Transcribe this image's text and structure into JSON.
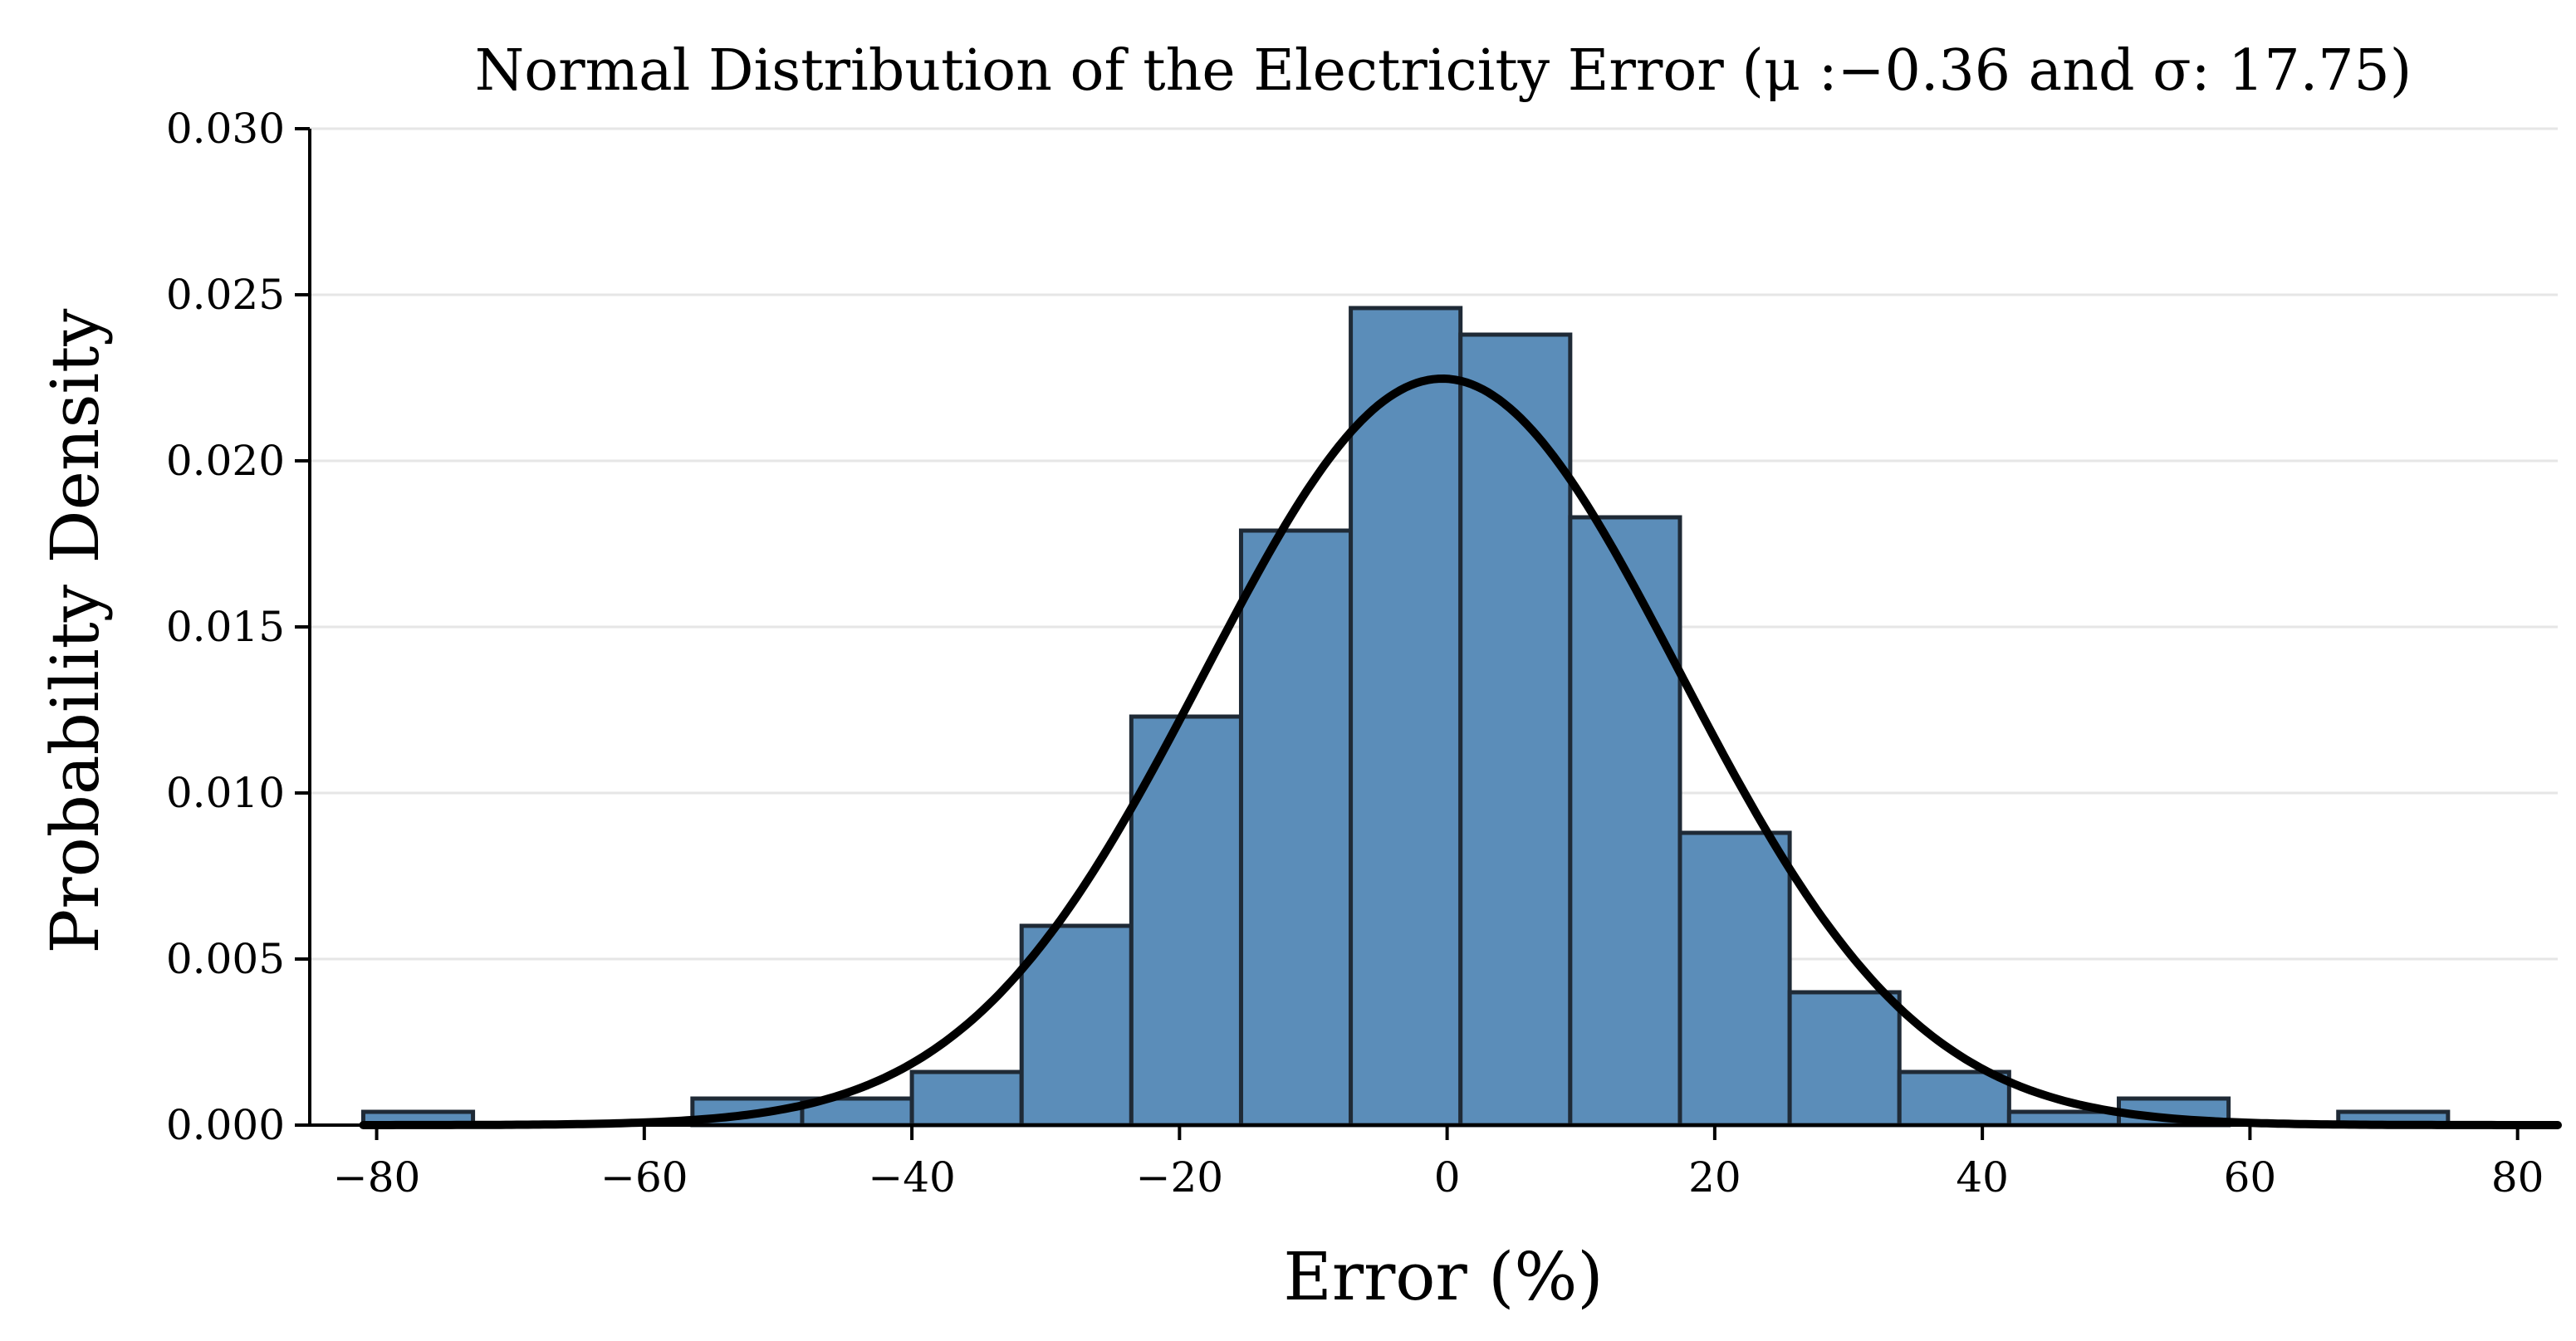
{
  "chart_data": {
    "type": "bar",
    "title": "Normal Distribution of the Electricity Error (μ :−0.36 and σ: 17.75)",
    "xlabel": "Error (%)",
    "ylabel": "Probability Density",
    "xlim": [
      -85,
      83
    ],
    "ylim": [
      0,
      0.03
    ],
    "x_ticks": [
      -80,
      -60,
      -40,
      -20,
      0,
      20,
      40,
      60,
      80
    ],
    "x_tick_labels": [
      "−80",
      "−60",
      "−40",
      "−20",
      "0",
      "20",
      "40",
      "60",
      "80"
    ],
    "y_ticks": [
      0,
      0.005,
      0.01,
      0.015,
      0.02,
      0.025,
      0.03
    ],
    "y_tick_labels": [
      "0.000",
      "0.005",
      "0.010",
      "0.015",
      "0.020",
      "0.025",
      "0.030"
    ],
    "grid": "horizontal",
    "bins": [
      {
        "x0": -81,
        "x1": -72.8,
        "density": 0.0004
      },
      {
        "x0": -72.8,
        "x1": -64.6,
        "density": 0
      },
      {
        "x0": -64.6,
        "x1": -56.4,
        "density": 0
      },
      {
        "x0": -56.4,
        "x1": -48.2,
        "density": 0.0008
      },
      {
        "x0": -48.2,
        "x1": -40.0,
        "density": 0.0008
      },
      {
        "x0": -40.0,
        "x1": -31.8,
        "density": 0.0016
      },
      {
        "x0": -31.8,
        "x1": -23.6,
        "density": 0.006
      },
      {
        "x0": -23.6,
        "x1": -15.4,
        "density": 0.0123
      },
      {
        "x0": -15.4,
        "x1": -7.2,
        "density": 0.0179
      },
      {
        "x0": -7.2,
        "x1": 1.0,
        "density": 0.0246
      },
      {
        "x0": 1.0,
        "x1": 9.2,
        "density": 0.0238
      },
      {
        "x0": 9.2,
        "x1": 17.4,
        "density": 0.0183
      },
      {
        "x0": 17.4,
        "x1": 25.6,
        "density": 0.0088
      },
      {
        "x0": 25.6,
        "x1": 33.8,
        "density": 0.004
      },
      {
        "x0": 33.8,
        "x1": 42.0,
        "density": 0.0016
      },
      {
        "x0": 42.0,
        "x1": 50.2,
        "density": 0.0004
      },
      {
        "x0": 50.2,
        "x1": 58.4,
        "density": 0.0008
      },
      {
        "x0": 58.4,
        "x1": 66.6,
        "density": 0
      },
      {
        "x0": 66.6,
        "x1": 74.8,
        "density": 0.0004
      }
    ],
    "fit_curve": {
      "type": "normal-pdf",
      "mu": -0.36,
      "sigma": 17.75,
      "x_range": [
        -81,
        83
      ]
    },
    "colors": {
      "bar_fill": "#5b8db9",
      "bar_edge": "#1f2a36",
      "curve": "#000000",
      "grid": "#e6e6e6"
    }
  }
}
